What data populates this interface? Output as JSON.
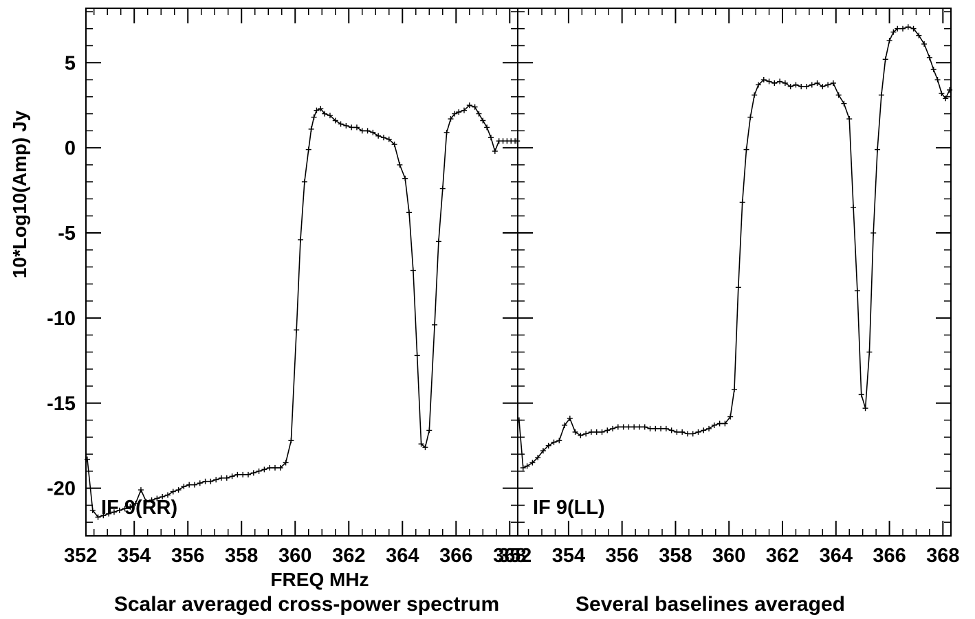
{
  "chart_data": {
    "type": "line",
    "ylabel": "10*Log10(Amp) Jy",
    "xlabel": "FREQ MHz",
    "captions": [
      "Scalar averaged cross-power spectrum",
      "Several baselines averaged"
    ],
    "ylim": [
      -22.8,
      8.2
    ],
    "yticks": [
      5,
      0,
      -5,
      -10,
      -15,
      -20
    ],
    "line_color": "#000000",
    "marker": "plus",
    "panels": [
      {
        "label": "IF 9(RR)",
        "xlim": [
          352.2,
          368.3
        ],
        "xticks": [
          352,
          354,
          356,
          358,
          360,
          362,
          364,
          366,
          368
        ],
        "series": [
          {
            "x": [
              352.25,
              352.45,
              352.65,
              352.85,
              353.05,
              353.25,
              353.45,
              353.65,
              353.85,
              354.05,
              354.25,
              354.45,
              354.65,
              354.85,
              355.05,
              355.25,
              355.45,
              355.65,
              355.85,
              356.05,
              356.25,
              356.45,
              356.65,
              356.85,
              357.05,
              357.25,
              357.45,
              357.65,
              357.85,
              358.05,
              358.25,
              358.45,
              358.65,
              358.85,
              359.05,
              359.25,
              359.45,
              359.65,
              359.85,
              360.05,
              360.2,
              360.35,
              360.5,
              360.6,
              360.7,
              360.8,
              360.95,
              361.1,
              361.3,
              361.5,
              361.7,
              361.9,
              362.1,
              362.3,
              362.5,
              362.7,
              362.9,
              363.1,
              363.3,
              363.5,
              363.7,
              363.9,
              364.1,
              364.25,
              364.4,
              364.55,
              364.7,
              364.85,
              365.0,
              365.2,
              365.35,
              365.5,
              365.65,
              365.8,
              365.95,
              366.1,
              366.3,
              366.5,
              366.7,
              366.85,
              367.0,
              367.15,
              367.3,
              367.45,
              367.6,
              367.75,
              367.9,
              368.05,
              368.2,
              368.28
            ],
            "y": [
              -18.3,
              -21.3,
              -21.7,
              -21.6,
              -21.5,
              -21.4,
              -21.3,
              -21.2,
              -21.1,
              -20.9,
              -20.1,
              -20.8,
              -20.7,
              -20.6,
              -20.5,
              -20.4,
              -20.2,
              -20.1,
              -19.9,
              -19.8,
              -19.8,
              -19.7,
              -19.6,
              -19.6,
              -19.5,
              -19.4,
              -19.4,
              -19.3,
              -19.2,
              -19.2,
              -19.2,
              -19.1,
              -19.0,
              -18.9,
              -18.8,
              -18.8,
              -18.8,
              -18.5,
              -17.2,
              -10.7,
              -5.4,
              -2.0,
              -0.1,
              1.1,
              1.8,
              2.2,
              2.3,
              2.0,
              1.9,
              1.6,
              1.4,
              1.3,
              1.2,
              1.2,
              1.0,
              1.0,
              0.9,
              0.7,
              0.6,
              0.5,
              0.2,
              -1.0,
              -1.8,
              -3.8,
              -7.2,
              -12.2,
              -17.4,
              -17.6,
              -16.6,
              -10.4,
              -5.5,
              -2.4,
              0.9,
              1.7,
              2.0,
              2.1,
              2.2,
              2.5,
              2.4,
              2.0,
              1.6,
              1.2,
              0.6,
              -0.2,
              0.4,
              0.4,
              0.4,
              0.4,
              0.4,
              0.4
            ]
          }
        ]
      },
      {
        "label": "IF 9(LL)",
        "xlim": [
          352.1,
          368.3
        ],
        "xticks": [
          352,
          354,
          356,
          358,
          360,
          362,
          364,
          366,
          368
        ],
        "series": [
          {
            "x": [
              352.15,
              352.3,
              352.45,
              352.65,
              352.85,
              353.05,
              353.25,
              353.45,
              353.65,
              353.85,
              354.05,
              354.25,
              354.45,
              354.65,
              354.85,
              355.05,
              355.25,
              355.45,
              355.65,
              355.85,
              356.05,
              356.25,
              356.45,
              356.65,
              356.85,
              357.05,
              357.25,
              357.45,
              357.65,
              357.85,
              358.05,
              358.25,
              358.45,
              358.65,
              358.85,
              359.05,
              359.25,
              359.45,
              359.65,
              359.85,
              360.05,
              360.2,
              360.35,
              360.5,
              360.65,
              360.8,
              360.95,
              361.1,
              361.3,
              361.5,
              361.7,
              361.9,
              362.1,
              362.3,
              362.5,
              362.7,
              362.9,
              363.1,
              363.3,
              363.5,
              363.7,
              363.9,
              364.1,
              364.3,
              364.5,
              364.65,
              364.8,
              364.95,
              365.1,
              365.25,
              365.4,
              365.55,
              365.7,
              365.85,
              366.0,
              366.15,
              366.3,
              366.5,
              366.7,
              366.9,
              367.1,
              367.3,
              367.5,
              367.65,
              367.8,
              367.95,
              368.1,
              368.25
            ],
            "y": [
              -16.0,
              -18.8,
              -18.7,
              -18.5,
              -18.2,
              -17.8,
              -17.5,
              -17.3,
              -17.2,
              -16.3,
              -15.9,
              -16.7,
              -16.9,
              -16.8,
              -16.7,
              -16.7,
              -16.7,
              -16.6,
              -16.5,
              -16.4,
              -16.4,
              -16.4,
              -16.4,
              -16.4,
              -16.4,
              -16.5,
              -16.5,
              -16.5,
              -16.5,
              -16.6,
              -16.7,
              -16.7,
              -16.8,
              -16.8,
              -16.7,
              -16.6,
              -16.5,
              -16.3,
              -16.2,
              -16.2,
              -15.8,
              -14.2,
              -8.2,
              -3.2,
              -0.1,
              1.8,
              3.1,
              3.7,
              4.0,
              3.9,
              3.8,
              3.9,
              3.8,
              3.6,
              3.7,
              3.6,
              3.6,
              3.7,
              3.8,
              3.6,
              3.7,
              3.8,
              3.1,
              2.6,
              1.7,
              -3.5,
              -8.4,
              -14.5,
              -15.3,
              -12.0,
              -5.0,
              -0.1,
              3.1,
              5.2,
              6.3,
              6.8,
              7.0,
              7.0,
              7.1,
              7.0,
              6.6,
              6.1,
              5.3,
              4.6,
              4.0,
              3.2,
              2.9,
              3.4
            ]
          }
        ]
      }
    ]
  }
}
